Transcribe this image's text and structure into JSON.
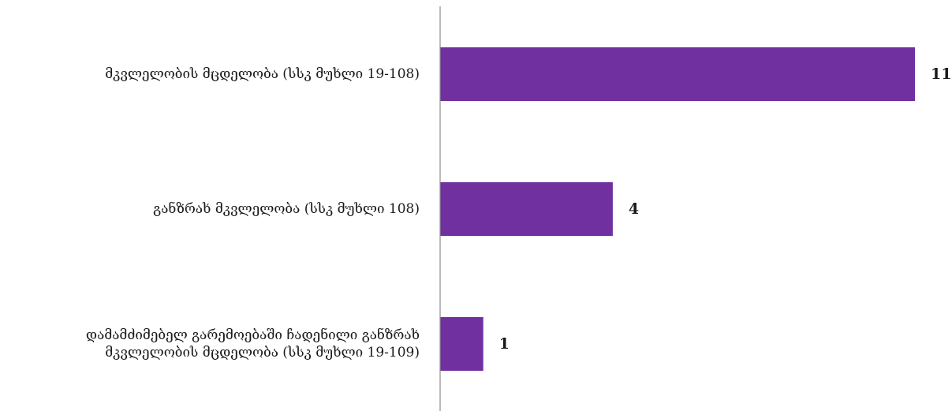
{
  "chart_data": {
    "type": "bar",
    "orientation": "horizontal",
    "categories": [
      [
        "მკვლელობის მცდელობა (სსკ მუხლი 19-108)"
      ],
      [
        "განზრახ მკვლელობა (სსკ მუხლი 108)"
      ],
      [
        "დამამძიმებელ გარემოებაში ჩადენილი განზრახ",
        "მკვლელობის მცდელობა (სსკ მუხლი 19-109)"
      ]
    ],
    "values": [
      11,
      4,
      1
    ],
    "xlim": [
      0,
      11.5
    ],
    "bar_color": "#7030a0",
    "axis_color": "#8c8c8c",
    "grid": false,
    "legend": "none"
  }
}
